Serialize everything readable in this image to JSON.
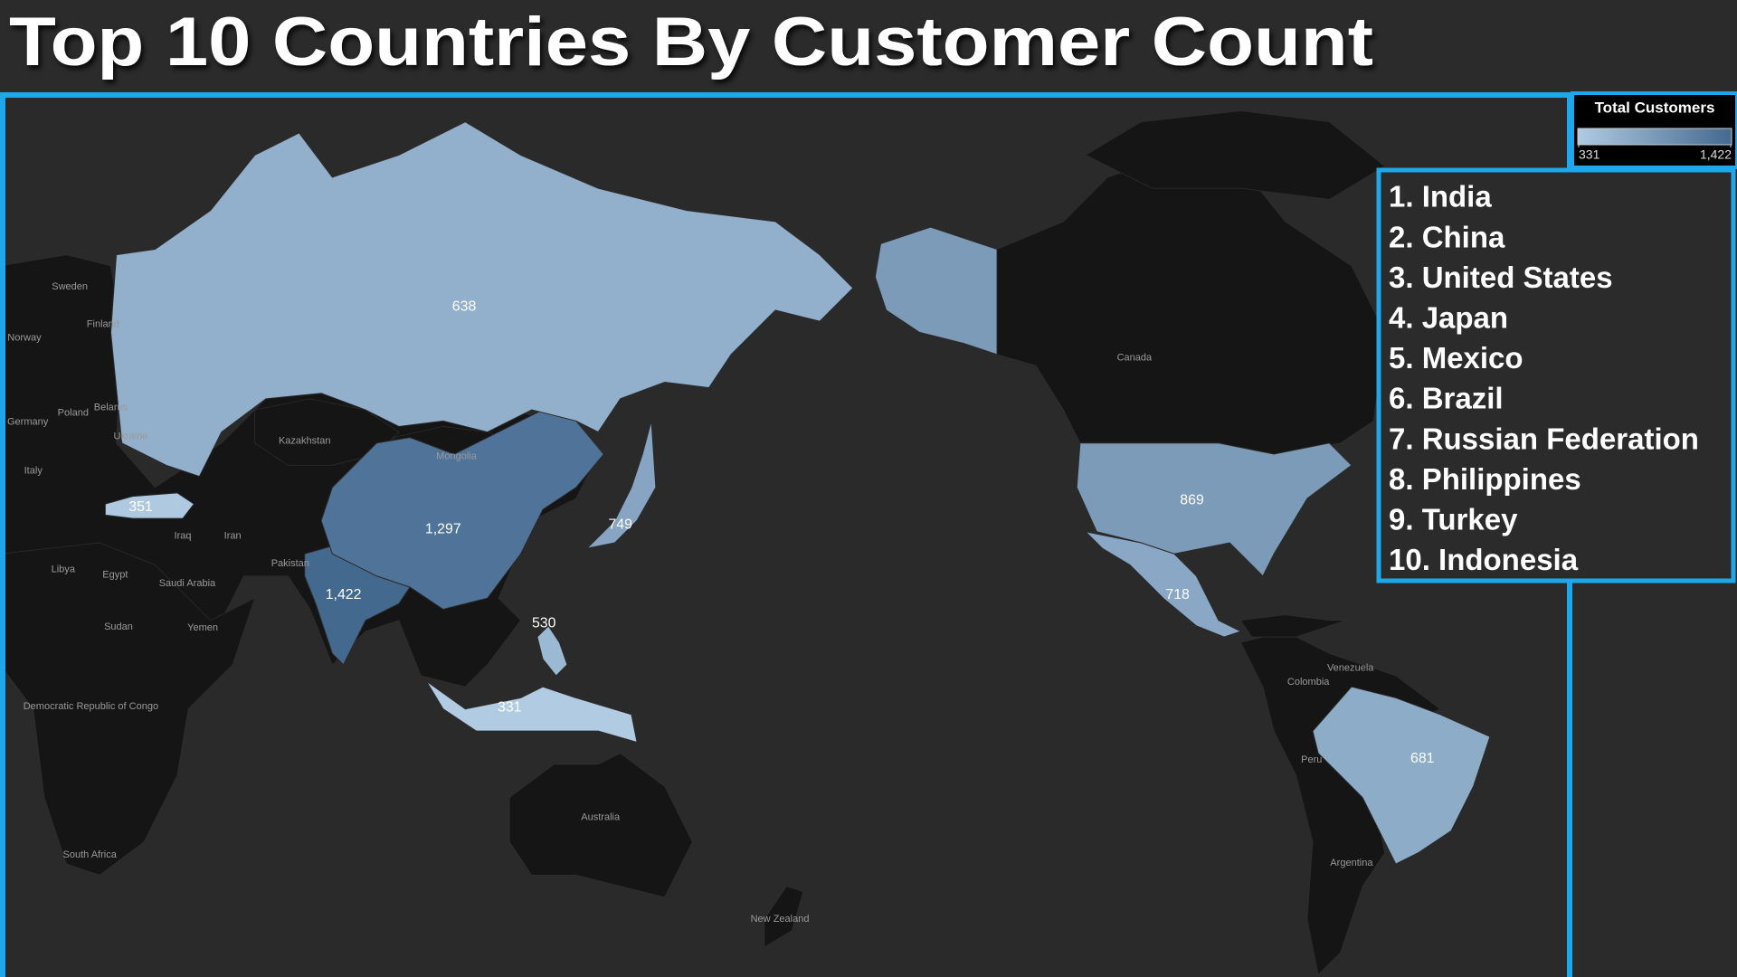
{
  "chart_data": {
    "type": "choropleth",
    "title": "Top 10 Countries By Customer Count",
    "legend_title": "Total Customers",
    "categories": [
      "1. India",
      "2. China",
      "3. United States",
      "4. Japan",
      "5. Mexico",
      "6. Brazil",
      "7. Russian Federation",
      "8. Philippines",
      "9. Turkey",
      "10. Indonesia"
    ],
    "values": [
      1422,
      1297,
      869,
      749,
      718,
      681,
      638,
      530,
      351,
      331
    ],
    "value_labels": [
      "1,422",
      "1,297",
      "869",
      "749",
      "718",
      "681",
      "638",
      "530",
      "351",
      "331"
    ],
    "colors": [
      "#b0cbe2",
      "#44698f"
    ],
    "colorlim": [
      331,
      1422
    ],
    "colorticks": [
      331,
      {
        "value": 1422,
        "label": "1,422"
      }
    ],
    "map_labels": [
      "Sweden",
      "Finland",
      "Norway",
      "Germany",
      "Poland",
      "Belarus",
      "Ukraine",
      "Italy",
      "Kazakhstan",
      "Mongolia",
      "Iran",
      "Iraq",
      "Libya",
      "Egypt",
      "Saudi Arabia",
      "Pakistan",
      "Sudan",
      "Yemen",
      "Democratic Republic of Congo",
      "South Africa",
      "Australia",
      "New Zealand",
      "Canada",
      "Venezuela",
      "Colombia",
      "Peru",
      "Argentina"
    ]
  }
}
